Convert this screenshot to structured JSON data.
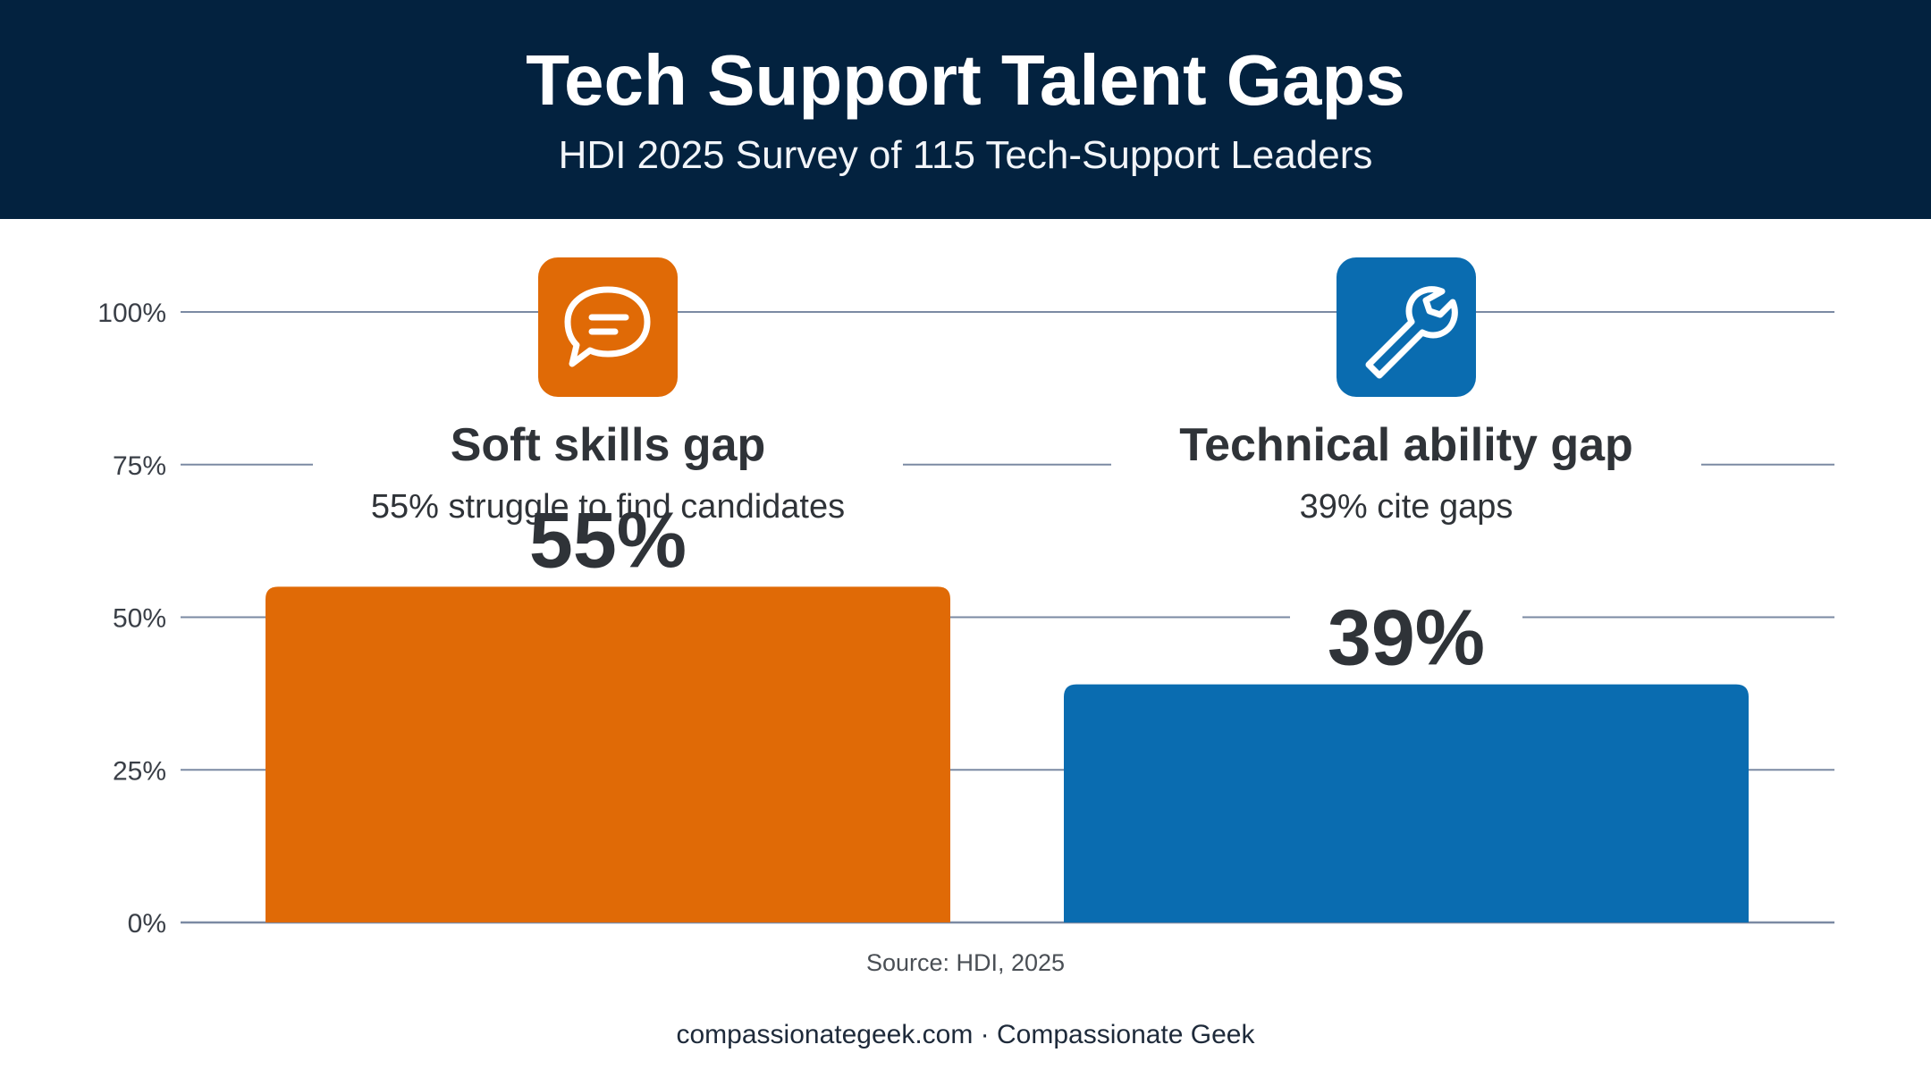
{
  "header": {
    "title": "Tech Support Talent Gaps",
    "subtitle": "HDI 2025 Survey of 115 Tech-Support Leaders"
  },
  "source": "Source: HDI, 2025",
  "footer": "compassionategeek.com · Compassionate Geek",
  "colors": {
    "header_bg": "#03223f",
    "soft_skills": "#e06a06",
    "technical": "#0a6cb0",
    "gridline": "#7b8aa3"
  },
  "chart_data": {
    "type": "bar",
    "categories": [
      "Soft skills gap",
      "Technical ability gap"
    ],
    "values": [
      55,
      39
    ],
    "descriptions": [
      "55% struggle to find candidates",
      "39% cite gaps"
    ],
    "data_labels": [
      "55%",
      "39%"
    ],
    "icons": [
      "chat-bubble-icon",
      "wrench-icon"
    ],
    "bar_colors": [
      "#e06a06",
      "#0a6cb0"
    ],
    "ylim": [
      0,
      100
    ],
    "yticks": [
      0,
      25,
      50,
      75,
      100
    ],
    "ytick_labels": [
      "0%",
      "25%",
      "50%",
      "75%",
      "100%"
    ],
    "grid": true
  }
}
